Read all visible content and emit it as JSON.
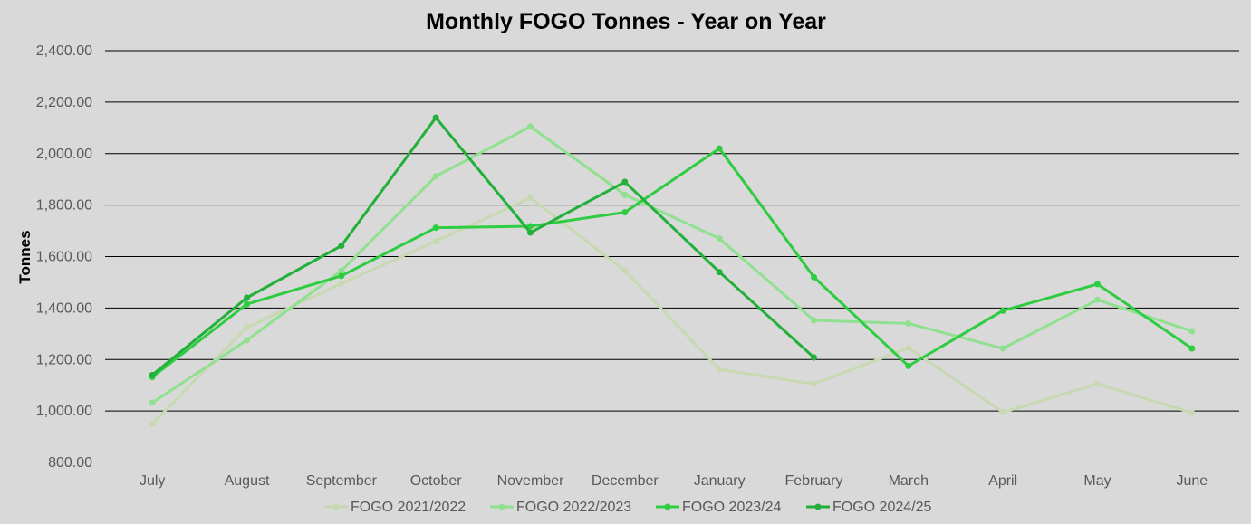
{
  "chart_data": {
    "type": "line",
    "title": "Monthly FOGO Tonnes - Year on Year",
    "xlabel": "",
    "ylabel": "Tonnes",
    "ylim": [
      800,
      2400
    ],
    "yticks": [
      "800.00",
      "1,000.00",
      "1,200.00",
      "1,400.00",
      "1,600.00",
      "1,800.00",
      "2,000.00",
      "2,200.00",
      "2,400.00"
    ],
    "ytick_values": [
      800,
      1000,
      1200,
      1400,
      1600,
      1800,
      2000,
      2200,
      2400
    ],
    "grid": true,
    "legend_position": "bottom",
    "categories": [
      "July",
      "August",
      "September",
      "October",
      "November",
      "December",
      "January",
      "February",
      "March",
      "April",
      "May",
      "June"
    ],
    "series": [
      {
        "name": "FOGO 2021/2022",
        "color": "#c6d9b0",
        "values": [
          950,
          1325,
          1495,
          1660,
          1828,
          1545,
          1162,
          1105,
          1245,
          995,
          1105,
          993
        ]
      },
      {
        "name": "FOGO 2022/2023",
        "color": "#8fe08f",
        "values": [
          1032,
          1275,
          1545,
          1912,
          2105,
          1840,
          1670,
          1352,
          1340,
          1243,
          1432,
          1310
        ]
      },
      {
        "name": "FOGO 2023/24",
        "color": "#2ecc40",
        "values": [
          1132,
          1415,
          1525,
          1712,
          1718,
          1772,
          2020,
          1520,
          1175,
          1390,
          1493,
          1243
        ]
      },
      {
        "name": "FOGO 2024/25",
        "color": "#22b03a",
        "values": [
          1140,
          1440,
          1642,
          2140,
          1693,
          1890,
          1540,
          1208,
          null,
          null,
          null,
          null
        ]
      }
    ]
  }
}
